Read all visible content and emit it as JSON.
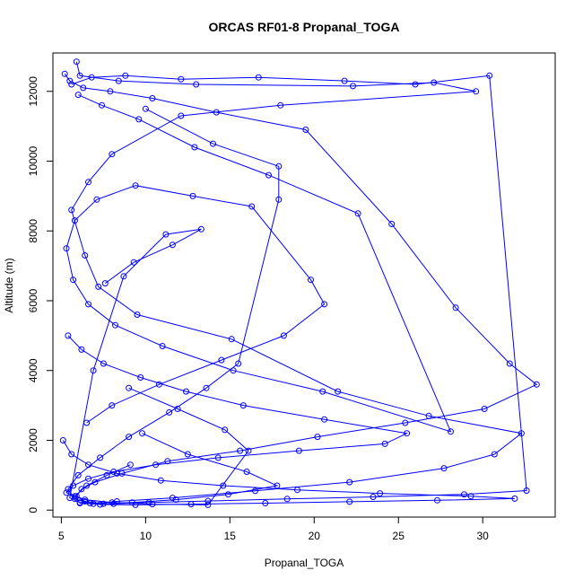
{
  "chart_data": {
    "type": "line",
    "title": "ORCAS RF01-8 Propanal_TOGA",
    "xlabel": "Propanal_TOGA",
    "ylabel": "Altitude (m)",
    "xlim": [
      4.5,
      34.3
    ],
    "ylim": [
      -200,
      13100
    ],
    "x_ticks": [
      5,
      10,
      15,
      20,
      25,
      30
    ],
    "y_ticks": [
      0,
      2000,
      4000,
      6000,
      8000,
      10000,
      12000
    ],
    "grid": false,
    "legend": "none",
    "marker": "open-circle",
    "series_color": "#0000ff",
    "series": [
      {
        "x": [
          5.9,
          6.1,
          8.4,
          13.0,
          22.3,
          27.1,
          29.6,
          18.0,
          12.1,
          8.0,
          6.6,
          5.6,
          6.4,
          7.2,
          9.5,
          15.1,
          21.4,
          26.8,
          32.3,
          30.7,
          27.7,
          22.1,
          16.5,
          11.6,
          8.3,
          6.9,
          6.1,
          5.8,
          6.5,
          7.7,
          9.1
        ],
        "y": [
          12850,
          12450,
          12300,
          12200,
          12150,
          12250,
          12000,
          11600,
          11300,
          10200,
          9400,
          8600,
          7300,
          6400,
          5600,
          4900,
          3400,
          2700,
          2200,
          1600,
          1200,
          800,
          550,
          350,
          250,
          180,
          200,
          400,
          700,
          1000,
          1300
        ]
      },
      {
        "x": [
          5.2,
          5.5,
          6.3,
          7.9,
          10.4,
          14.2,
          19.5,
          24.6,
          28.4,
          31.6,
          33.2,
          30.1,
          25.4,
          20.2,
          15.6,
          11.3,
          8.6,
          7.0,
          6.2,
          5.9,
          6.4,
          7.5,
          9.2,
          11.8,
          14.9,
          17.8,
          16.0,
          12.5,
          9.8
        ],
        "y": [
          12500,
          12300,
          12100,
          12000,
          11800,
          11400,
          10900,
          8200,
          5800,
          4200,
          3600,
          2900,
          2500,
          2100,
          1700,
          1400,
          1050,
          800,
          600,
          400,
          250,
          180,
          220,
          300,
          450,
          700,
          1100,
          1600,
          2200
        ]
      },
      {
        "x": [
          5.6,
          6.8,
          8.8,
          12.1,
          16.7,
          21.8,
          26.0,
          30.4,
          32.6,
          28.9,
          23.5,
          18.4,
          13.7,
          10.2,
          8.1,
          6.7,
          5.8,
          5.4,
          6.0,
          7.3,
          9.0,
          11.4,
          13.6,
          15.5,
          17.9,
          17.9,
          14.0,
          10.0
        ],
        "y": [
          12200,
          12400,
          12450,
          12350,
          12400,
          12300,
          12200,
          12450,
          560,
          450,
          380,
          320,
          260,
          220,
          180,
          200,
          320,
          600,
          1000,
          1500,
          2100,
          2800,
          3500,
          4200,
          8900,
          9850,
          10500,
          11500
        ]
      },
      {
        "x": [
          6.0,
          7.4,
          9.6,
          12.9,
          17.3,
          22.6,
          28.1,
          20.5,
          15.2,
          11.0,
          8.2,
          6.6,
          5.7,
          5.3,
          5.8,
          7.1,
          9.4,
          12.8,
          16.3,
          19.8,
          20.6,
          18.2,
          14.5,
          10.8,
          8.0,
          6.5
        ],
        "y": [
          11900,
          11600,
          11200,
          10400,
          9600,
          8500,
          2250,
          3400,
          4000,
          4700,
          5300,
          5900,
          6600,
          7500,
          8300,
          8900,
          9300,
          9000,
          8700,
          6600,
          5900,
          5000,
          4300,
          3600,
          3000,
          2500
        ]
      },
      {
        "x": [
          5.1,
          5.6,
          6.6,
          8.3,
          10.9,
          14.6,
          19.0,
          23.9,
          29.3,
          31.9,
          27.3,
          22.1,
          17.1,
          12.7,
          9.4,
          7.3,
          6.1,
          5.5,
          6.9,
          8.7,
          11.2,
          13.3,
          11.6,
          9.3,
          7.6
        ],
        "y": [
          2000,
          1600,
          1300,
          1050,
          850,
          700,
          580,
          480,
          400,
          330,
          280,
          240,
          200,
          170,
          150,
          160,
          220,
          350,
          4000,
          6700,
          7900,
          8050,
          7600,
          7100,
          6500
        ]
      },
      {
        "x": [
          5.4,
          6.2,
          7.5,
          9.7,
          12.4,
          15.8,
          20.6,
          25.5,
          24.2,
          19.1,
          14.3,
          10.6,
          8.1,
          6.6,
          5.7,
          5.3,
          6.4,
          8.0,
          10.4,
          13.7,
          16.1,
          14.7,
          11.9,
          9.0
        ],
        "y": [
          5000,
          4600,
          4200,
          3800,
          3400,
          3000,
          2600,
          2200,
          1900,
          1700,
          1500,
          1300,
          1100,
          900,
          700,
          500,
          300,
          220,
          170,
          150,
          1700,
          2300,
          2900,
          3500
        ]
      }
    ]
  }
}
